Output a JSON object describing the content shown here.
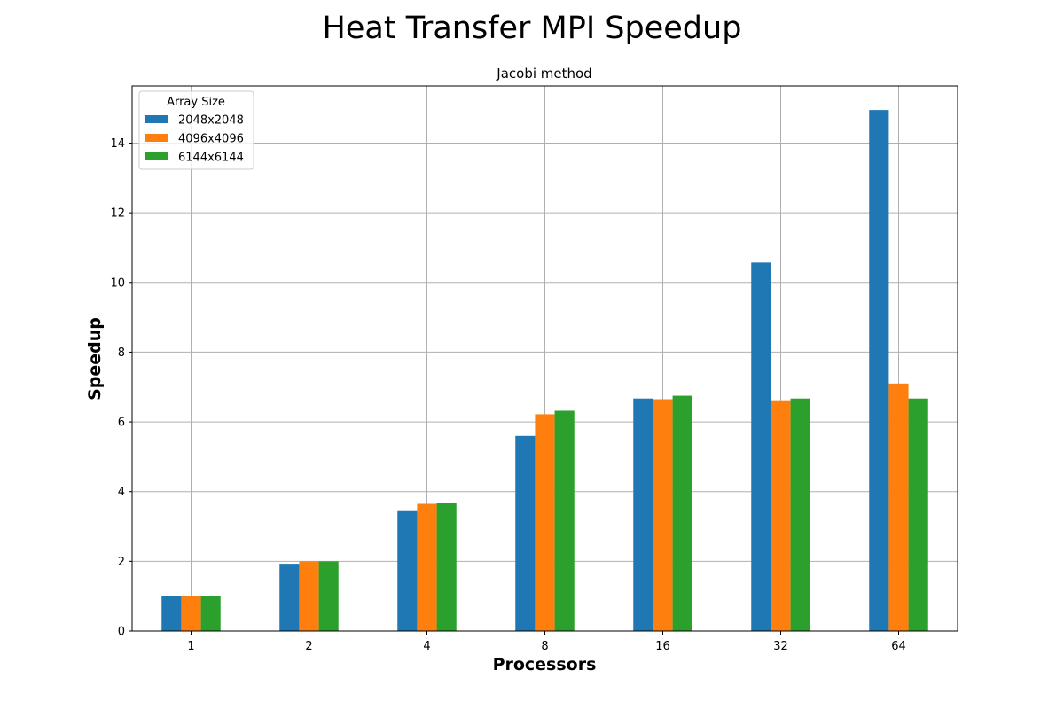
{
  "chart_data": {
    "type": "bar",
    "title": "Heat Transfer MPI Speedup",
    "subtitle": "Jacobi method",
    "xlabel": "Processors",
    "ylabel": "Speedup",
    "categories": [
      "1",
      "2",
      "4",
      "8",
      "16",
      "32",
      "64"
    ],
    "ylim": [
      0,
      15.64
    ],
    "yticks": [
      0,
      2,
      4,
      6,
      8,
      10,
      12,
      14
    ],
    "grid": true,
    "legend": {
      "title": "Array Size",
      "placement": "top-left"
    },
    "series": [
      {
        "name": "2048x2048",
        "color": "#1f77b4",
        "values": [
          1.0,
          1.93,
          3.44,
          5.6,
          6.67,
          10.57,
          14.95
        ]
      },
      {
        "name": "4096x4096",
        "color": "#ff7f0e",
        "values": [
          1.0,
          2.0,
          3.65,
          6.22,
          6.65,
          6.62,
          7.1
        ]
      },
      {
        "name": "6144x6144",
        "color": "#2ca02c",
        "values": [
          1.0,
          2.0,
          3.68,
          6.32,
          6.75,
          6.67,
          6.67
        ]
      }
    ]
  }
}
